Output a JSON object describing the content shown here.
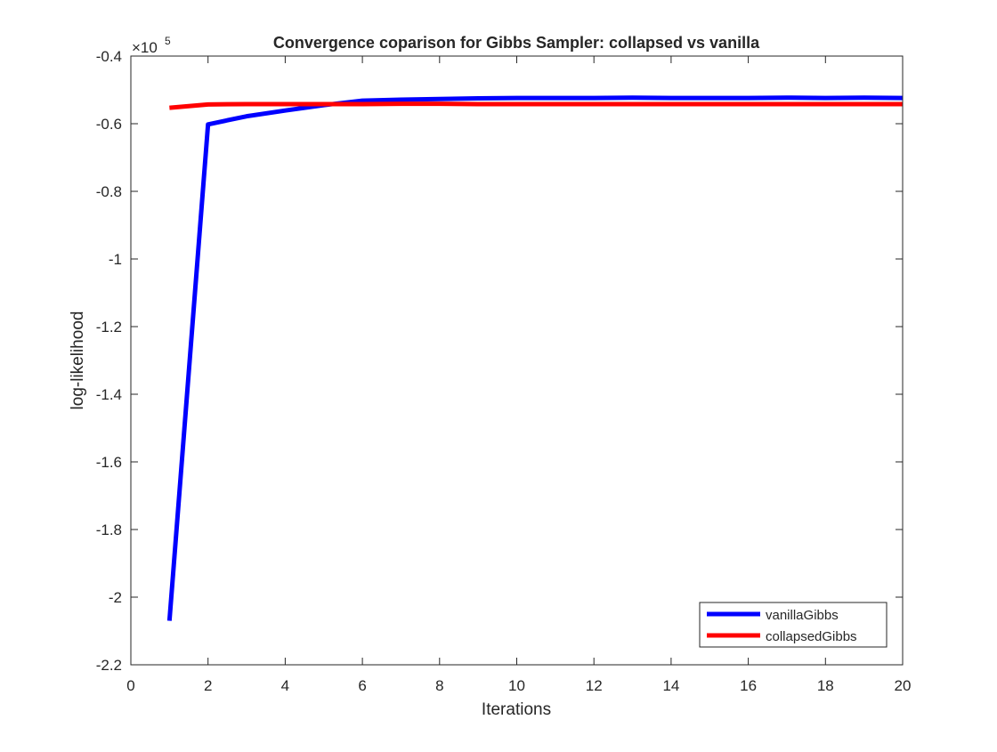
{
  "chart_data": {
    "type": "line",
    "title": "Convergence coparison for Gibbs Sampler: collapsed vs vanilla",
    "xlabel": "Iterations",
    "ylabel": "log-likelihood",
    "y_exponent_base": "×10",
    "y_exponent_power": "5",
    "xlim": [
      0,
      20
    ],
    "ylim": [
      -2.2,
      -0.4
    ],
    "xticks": [
      0,
      2,
      4,
      6,
      8,
      10,
      12,
      14,
      16,
      18,
      20
    ],
    "yticks": [
      -2.2,
      -2,
      -1.8,
      -1.6,
      -1.4,
      -1.2,
      -1,
      -0.8,
      -0.6,
      -0.4
    ],
    "xtick_labels": [
      "0",
      "2",
      "4",
      "6",
      "8",
      "10",
      "12",
      "14",
      "16",
      "18",
      "20"
    ],
    "ytick_labels": [
      "-2.2",
      "-2",
      "-1.8",
      "-1.6",
      "-1.4",
      "-1.2",
      "-1",
      "-0.8",
      "-0.6",
      "-0.4"
    ],
    "grid": false,
    "legend_position": "bottom-right",
    "x": [
      1,
      2,
      3,
      4,
      5,
      6,
      7,
      8,
      9,
      10,
      11,
      12,
      13,
      14,
      15,
      16,
      17,
      18,
      19,
      20
    ],
    "series": [
      {
        "name": "vanillaGibbs",
        "color": "#0000ff",
        "values": [
          -2.07,
          -0.602,
          -0.578,
          -0.561,
          -0.545,
          -0.532,
          -0.529,
          -0.527,
          -0.525,
          -0.524,
          -0.524,
          -0.524,
          -0.523,
          -0.524,
          -0.524,
          -0.524,
          -0.523,
          -0.524,
          -0.523,
          -0.524
        ]
      },
      {
        "name": "collapsedGibbs",
        "color": "#ff0000",
        "values": [
          -0.553,
          -0.543,
          -0.542,
          -0.542,
          -0.542,
          -0.542,
          -0.541,
          -0.541,
          -0.542,
          -0.542,
          -0.542,
          -0.542,
          -0.542,
          -0.542,
          -0.542,
          -0.542,
          -0.542,
          -0.542,
          -0.542,
          -0.542
        ]
      }
    ]
  }
}
